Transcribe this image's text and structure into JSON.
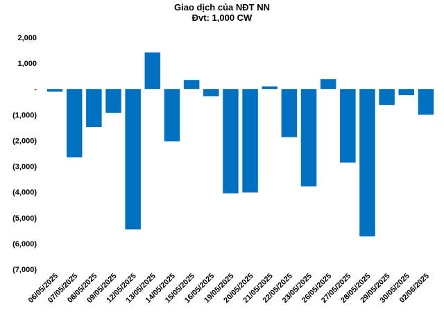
{
  "chart_data": {
    "type": "bar",
    "title": "Giao dịch của NĐT NN",
    "subtitle": "Đvt: 1,000 CW",
    "xlabel": "",
    "ylabel": "",
    "ylim": [
      -7000,
      2000
    ],
    "yticks": [
      {
        "value": 2000,
        "label": "2,000"
      },
      {
        "value": 1000,
        "label": "1,000"
      },
      {
        "value": 0,
        "label": "-"
      },
      {
        "value": -1000,
        "label": "(1,000)"
      },
      {
        "value": -2000,
        "label": "(2,000)"
      },
      {
        "value": -3000,
        "label": "(3,000)"
      },
      {
        "value": -4000,
        "label": "(4,000)"
      },
      {
        "value": -5000,
        "label": "(5,000)"
      },
      {
        "value": -6000,
        "label": "(6,000)"
      },
      {
        "value": -7000,
        "label": "(7,000)"
      }
    ],
    "categories": [
      "06/05/2025",
      "07/05/2025",
      "08/05/2025",
      "09/05/2025",
      "12/05/2025",
      "13/05/2025",
      "14/05/2025",
      "15/05/2025",
      "16/05/2025",
      "19/05/2025",
      "20/05/2025",
      "21/05/2025",
      "22/05/2025",
      "23/05/2025",
      "26/05/2025",
      "27/05/2025",
      "28/05/2025",
      "29/05/2025",
      "30/05/2025",
      "02/06/2025"
    ],
    "values": [
      -100,
      -2650,
      -1480,
      -930,
      -5450,
      1420,
      -2030,
      350,
      -280,
      -4050,
      -4020,
      100,
      -1870,
      -3780,
      380,
      -2860,
      -5720,
      -620,
      -240,
      -1000
    ],
    "grid": false,
    "legend": "none",
    "bar_color": "#0070C0"
  }
}
